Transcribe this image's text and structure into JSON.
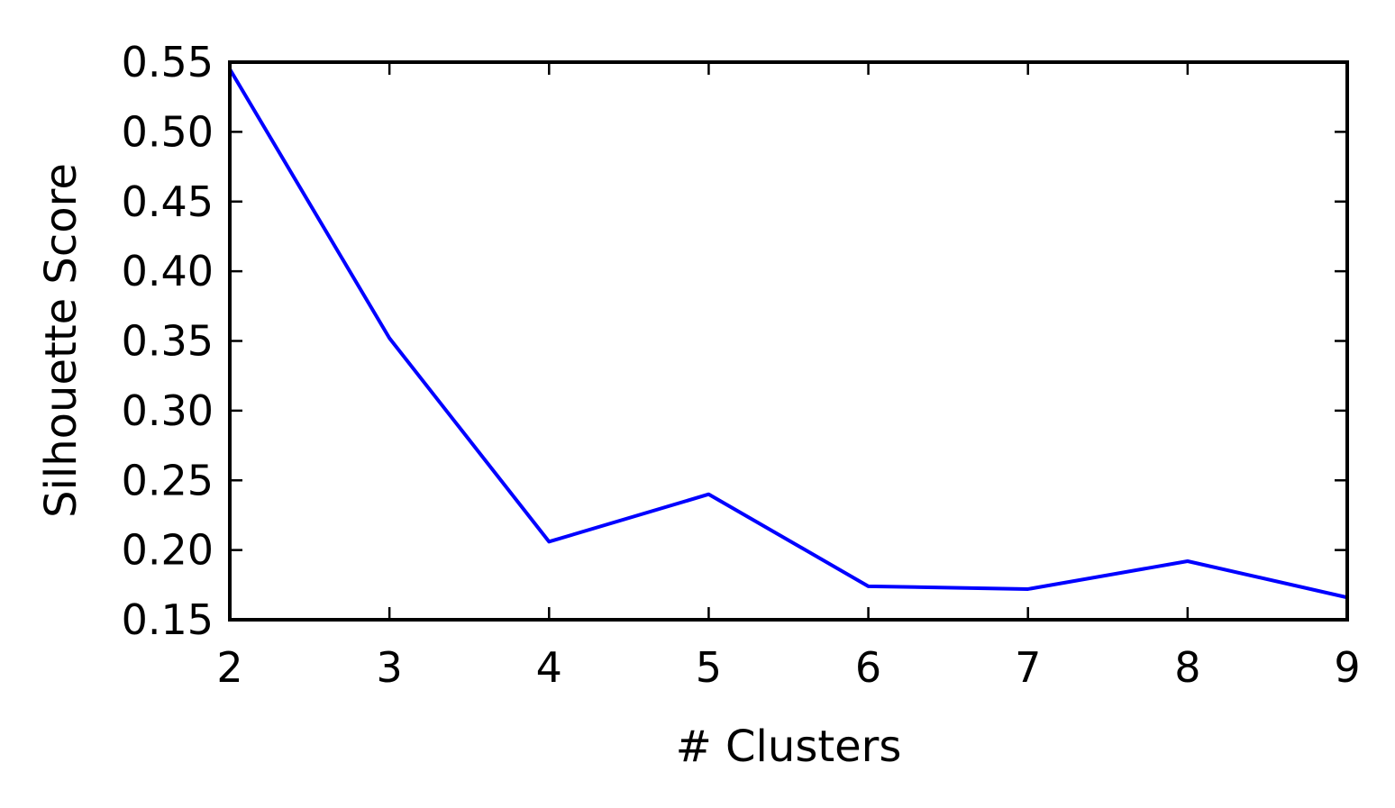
{
  "chart_data": {
    "type": "line",
    "xlabel": "# Clusters",
    "ylabel": "Silhouette Score",
    "xlim": [
      2,
      9
    ],
    "ylim": [
      0.15,
      0.55
    ],
    "xticks": [
      "2",
      "3",
      "4",
      "5",
      "6",
      "7",
      "8",
      "9"
    ],
    "yticks": [
      "0.15",
      "0.20",
      "0.25",
      "0.30",
      "0.35",
      "0.40",
      "0.45",
      "0.50",
      "0.55"
    ],
    "grid": false,
    "series": [
      {
        "color": "#0000ff",
        "x": [
          2,
          3,
          4,
          5,
          6,
          7,
          8,
          9
        ],
        "y": [
          0.545,
          0.352,
          0.206,
          0.24,
          0.174,
          0.172,
          0.192,
          0.166
        ]
      }
    ]
  }
}
